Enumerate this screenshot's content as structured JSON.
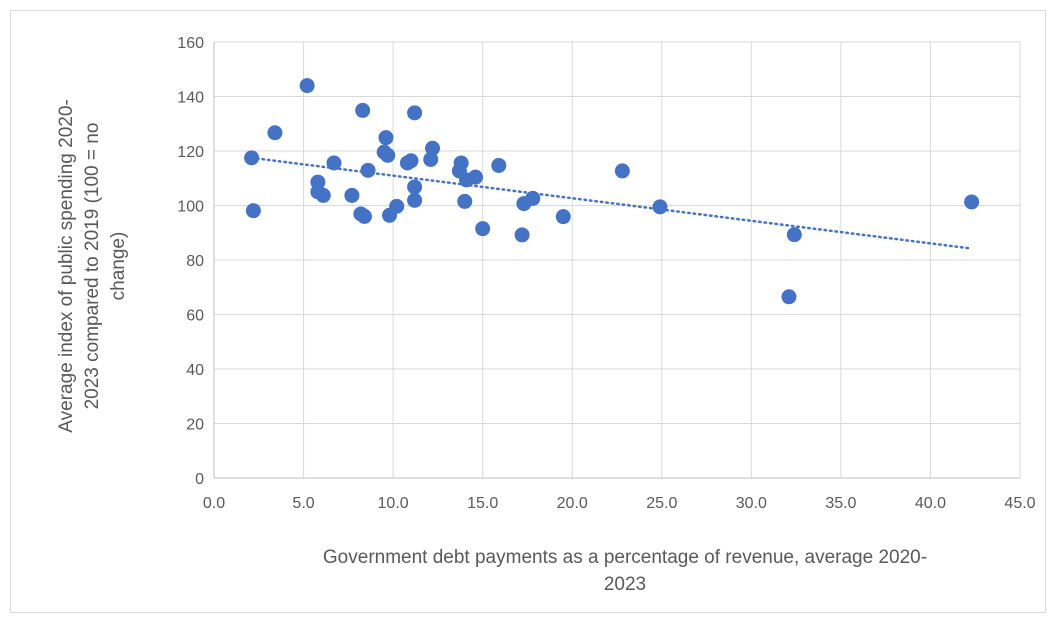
{
  "chart_data": {
    "type": "scatter",
    "title": "",
    "xlabel_lines": [
      "Government debt payments as a percentage of revenue, average 2020-",
      "2023"
    ],
    "ylabel_lines": [
      "Average index of public spending 2020-",
      "2023 compared to 2019 (100 = no",
      "change)"
    ],
    "xlim": [
      0,
      45
    ],
    "ylim": [
      0,
      160
    ],
    "x_ticks": [
      "0.0",
      "5.0",
      "10.0",
      "15.0",
      "20.0",
      "25.0",
      "30.0",
      "35.0",
      "40.0",
      "45.0"
    ],
    "y_ticks": [
      "0",
      "20",
      "40",
      "60",
      "80",
      "100",
      "120",
      "140",
      "160"
    ],
    "grid": "horizontal",
    "legend": "none",
    "marker_color": "#4472C4",
    "trendline": {
      "type": "linear",
      "style": "dotted",
      "x": [
        2.1,
        42.3
      ],
      "y": [
        117.5,
        84.2
      ]
    },
    "points": [
      {
        "x": 2.1,
        "y": 117.5
      },
      {
        "x": 2.2,
        "y": 98.1
      },
      {
        "x": 3.4,
        "y": 126.7
      },
      {
        "x": 5.2,
        "y": 144.0
      },
      {
        "x": 5.8,
        "y": 108.6
      },
      {
        "x": 5.8,
        "y": 105.0
      },
      {
        "x": 6.1,
        "y": 103.7
      },
      {
        "x": 6.7,
        "y": 115.6
      },
      {
        "x": 7.7,
        "y": 103.7
      },
      {
        "x": 8.2,
        "y": 96.9
      },
      {
        "x": 8.3,
        "y": 134.9
      },
      {
        "x": 8.4,
        "y": 96.0
      },
      {
        "x": 8.6,
        "y": 112.9
      },
      {
        "x": 9.5,
        "y": 119.6
      },
      {
        "x": 9.6,
        "y": 124.9
      },
      {
        "x": 9.7,
        "y": 118.4
      },
      {
        "x": 9.8,
        "y": 96.4
      },
      {
        "x": 10.2,
        "y": 99.7
      },
      {
        "x": 10.8,
        "y": 115.6
      },
      {
        "x": 11.0,
        "y": 116.4
      },
      {
        "x": 11.2,
        "y": 134.0
      },
      {
        "x": 11.2,
        "y": 106.8
      },
      {
        "x": 11.2,
        "y": 101.9
      },
      {
        "x": 12.1,
        "y": 116.9
      },
      {
        "x": 12.2,
        "y": 121.0
      },
      {
        "x": 13.7,
        "y": 112.7
      },
      {
        "x": 13.8,
        "y": 115.6
      },
      {
        "x": 14.0,
        "y": 101.5
      },
      {
        "x": 14.1,
        "y": 109.4
      },
      {
        "x": 14.6,
        "y": 110.4
      },
      {
        "x": 15.0,
        "y": 91.5
      },
      {
        "x": 15.9,
        "y": 114.7
      },
      {
        "x": 17.2,
        "y": 89.2
      },
      {
        "x": 17.3,
        "y": 100.7
      },
      {
        "x": 17.8,
        "y": 102.6
      },
      {
        "x": 19.5,
        "y": 95.9
      },
      {
        "x": 22.8,
        "y": 112.7
      },
      {
        "x": 24.9,
        "y": 99.5
      },
      {
        "x": 32.1,
        "y": 66.5
      },
      {
        "x": 32.4,
        "y": 89.3
      },
      {
        "x": 42.3,
        "y": 101.3
      }
    ]
  }
}
